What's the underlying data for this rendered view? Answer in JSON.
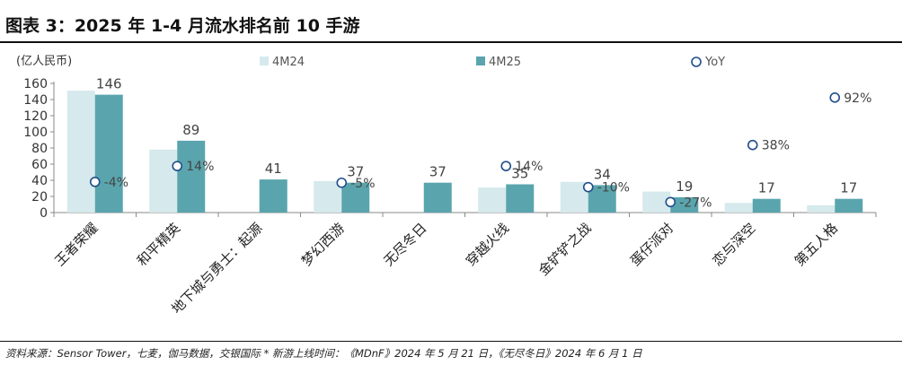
{
  "title": "图表 3：2025 年 1-4 月流水排名前 10 手游",
  "source": "资料来源：Sensor Tower，七麦，伽马数据，交银国际   * 新游上线时间：《MDnF》2024 年 5 月 21 日，《无尽冬日》2024 年 6 月 1 日",
  "colors": {
    "series_4M24": "#d6e9ec",
    "series_4M25": "#5aa5ad",
    "yoy_marker": "#1f4e8c",
    "axis": "#888888"
  },
  "chart_data": {
    "type": "bar",
    "unit_label": "(亿人民币)",
    "categories": [
      "王者荣耀",
      "和平精英",
      "地下城与勇士：起源",
      "梦幻西游",
      "无尽冬日",
      "穿越火线",
      "金铲铲之战",
      "蛋仔派对",
      "恋与深空",
      "第五人格"
    ],
    "series": [
      {
        "name": "4M24",
        "values": [
          151,
          78,
          null,
          39,
          null,
          31,
          38,
          26,
          12,
          9
        ]
      },
      {
        "name": "4M25",
        "values": [
          146,
          89,
          41,
          37,
          37,
          35,
          34,
          19,
          17,
          17
        ]
      }
    ],
    "yoy": {
      "name": "YoY",
      "values": [
        -4,
        14,
        null,
        -5,
        null,
        14,
        -10,
        -27,
        38,
        92
      ],
      "labels": [
        "-4%",
        "14%",
        "",
        "-5%",
        "",
        "14%",
        "-10%",
        "-27%",
        "38%",
        "92%"
      ]
    },
    "data_labels": [
      "146",
      "89",
      "41",
      "37",
      "37",
      "35",
      "34",
      "19",
      "17",
      "17"
    ],
    "ylim": [
      0,
      160
    ],
    "yticks": [
      "0",
      "20",
      "40",
      "60",
      "80",
      "100",
      "120",
      "140",
      "160"
    ],
    "legend_position": "top",
    "grid": false
  }
}
